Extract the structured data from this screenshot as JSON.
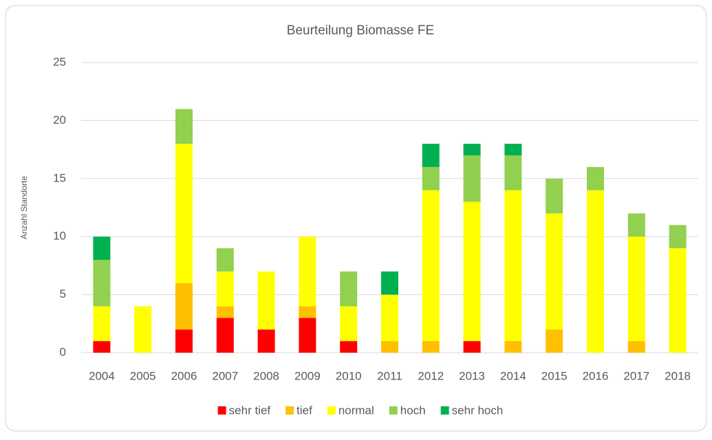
{
  "chart_data": {
    "type": "stacked_bar",
    "title": "Beurteilung Biomasse FE",
    "y_label": "Anzahl Standorte",
    "categories": [
      "2004",
      "2005",
      "2006",
      "2007",
      "2008",
      "2009",
      "2010",
      "2011",
      "2012",
      "2013",
      "2014",
      "2015",
      "2016",
      "2017",
      "2018"
    ],
    "series": [
      {
        "name": "sehr tief",
        "color": "#ff0000",
        "values": [
          1,
          0,
          2,
          3,
          2,
          3,
          1,
          0,
          0,
          1,
          0,
          0,
          0,
          0,
          0
        ]
      },
      {
        "name": "tief",
        "color": "#ffc000",
        "values": [
          0,
          0,
          4,
          1,
          0,
          1,
          0,
          1,
          1,
          0,
          1,
          2,
          0,
          1,
          0
        ]
      },
      {
        "name": "normal",
        "color": "#ffff00",
        "values": [
          3,
          4,
          12,
          3,
          5,
          6,
          3,
          4,
          13,
          12,
          13,
          10,
          14,
          9,
          9
        ]
      },
      {
        "name": "hoch",
        "color": "#92d050",
        "values": [
          4,
          0,
          3,
          2,
          0,
          0,
          3,
          0,
          2,
          4,
          3,
          3,
          2,
          2,
          2
        ]
      },
      {
        "name": "sehr hoch",
        "color": "#00b050",
        "values": [
          2,
          0,
          0,
          0,
          0,
          0,
          0,
          2,
          2,
          1,
          1,
          0,
          0,
          0,
          0
        ]
      }
    ],
    "ylim": [
      0,
      25
    ],
    "yticks": [
      0,
      5,
      10,
      15,
      20,
      25
    ],
    "grid": true,
    "legend": "bottom"
  }
}
